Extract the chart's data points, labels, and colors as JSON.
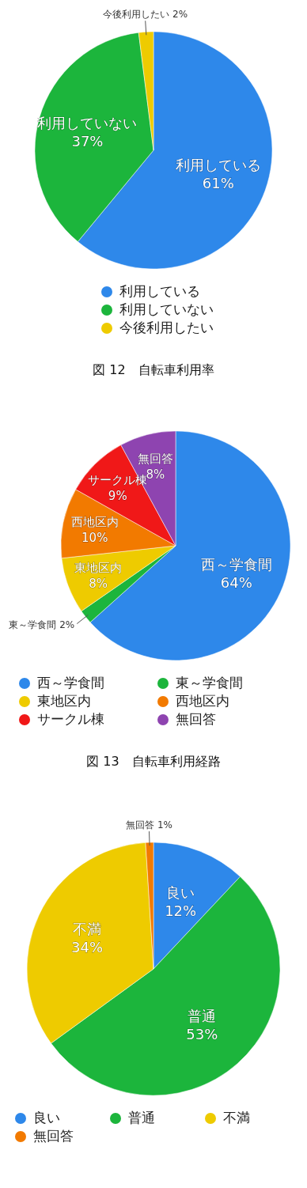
{
  "chart_data": [
    {
      "type": "pie",
      "title": "図 12　自転車利用率",
      "categories": [
        "利用している",
        "利用していない",
        "今後利用したい"
      ],
      "values": [
        61,
        37,
        2
      ],
      "value_labels": [
        "61%",
        "37%",
        "2%"
      ],
      "colors": [
        "#2e88ea",
        "#1cb53c",
        "#eecb00"
      ],
      "legend": "bottom"
    },
    {
      "type": "pie",
      "title": "図 13　自転車利用経路",
      "categories": [
        "西～学食間",
        "東～学食間",
        "東地区内",
        "西地区内",
        "サークル棟",
        "無回答"
      ],
      "values": [
        64,
        2,
        8,
        10,
        9,
        8
      ],
      "value_labels": [
        "64%",
        "2%",
        "8%",
        "10%",
        "9%",
        "8%"
      ],
      "colors": [
        "#2e88ea",
        "#1cb53c",
        "#eecb00",
        "#f27a00",
        "#f01818",
        "#8e44b0"
      ],
      "legend": "bottom"
    },
    {
      "type": "pie",
      "categories": [
        "良い",
        "普通",
        "不満",
        "無回答"
      ],
      "values": [
        12,
        53,
        34,
        1
      ],
      "value_labels": [
        "12%",
        "53%",
        "34%",
        "1%"
      ],
      "colors": [
        "#2e88ea",
        "#1cb53c",
        "#eecb00",
        "#f27a00"
      ],
      "legend": "bottom"
    }
  ]
}
